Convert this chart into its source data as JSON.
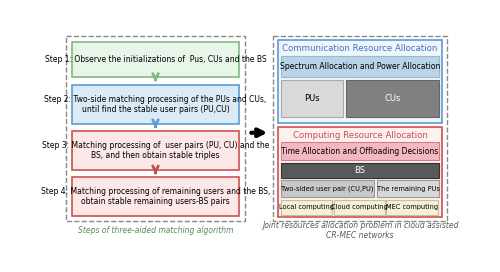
{
  "background_color": "#ffffff",
  "step1_text": "Step 1: Observe the initializations of  Pus, CUs and the BS",
  "step2_text": "Step 2: Two-side matching processing of the PUs and CUs,\nuntil find the stable user pairs (PU,CU)",
  "step3_text": "Step 3: Matching processing of  user pairs (PU, CU) and the\nBS, and then obtain stable triples",
  "step4_text": "Step 4: Matching processing of remaining users and the BS,\nobtain stable remaining users-BS pairs",
  "left_caption": "Steps of three-aided matching algorithm",
  "right_caption": "Joint resources allocation problem in cloud assisted\nCR-MEC networks",
  "comm_title": "Communication Resource Allocation",
  "comm_sub": "Spectrum Allocation and Power Allocation",
  "comm_pu": "PUs",
  "comm_cu": "CUs",
  "comp_title": "Computing Resource Allocation",
  "comp_sub": "Time Allocation and Offloading Decisions",
  "comp_bs": "BS",
  "comp_left": "Two-sided user pair (CU,PU)",
  "comp_right": "The remaining PUs",
  "comp_lc": "Local computing",
  "comp_cc": "Cloud computing",
  "comp_mc": "MEC computing",
  "step1_fill": "#e8f5e9",
  "step1_edge": "#7fba7f",
  "step2_fill": "#daeaf7",
  "step2_edge": "#5b9bd5",
  "step3_fill": "#fde8e8",
  "step3_edge": "#d05050",
  "step4_fill": "#fde8e8",
  "step4_edge": "#d05050",
  "arrow_green": "#7fba7f",
  "arrow_blue": "#5b9bd5",
  "arrow_red": "#c0504d",
  "left_outer_edge": "#888888",
  "right_outer_edge": "#888888",
  "comm_outer_fill": "#eef5fb",
  "comm_outer_edge": "#5b9bd5",
  "comm_title_color": "#4472c4",
  "comm_sub_fill": "#b8d4e8",
  "comm_sub_edge": "#a0b8cc",
  "comm_pu_fill": "#d9d9d9",
  "comm_pu_edge": "#aaaaaa",
  "comm_cu_fill": "#808080",
  "comm_cu_edge": "#666666",
  "comp_outer_fill": "#fff0f0",
  "comp_outer_edge": "#d05050",
  "comp_title_color": "#c0504d",
  "comp_sub_fill": "#f4b8c1",
  "comp_sub_edge": "#d08080",
  "comp_bs_fill": "#595959",
  "comp_bs_edge": "#333333",
  "comp_left_fill": "#c8c8c8",
  "comp_left_edge": "#999999",
  "comp_right_fill": "#d8d8d8",
  "comp_right_edge": "#999999",
  "comp_lc_fill": "#f5f0d8",
  "comp_lc_edge": "#c8c090",
  "comp_cc_fill": "#f5f0d8",
  "comp_cc_edge": "#c8c090",
  "comp_mc_fill": "#f5f0d8",
  "comp_mc_edge": "#c8c090"
}
